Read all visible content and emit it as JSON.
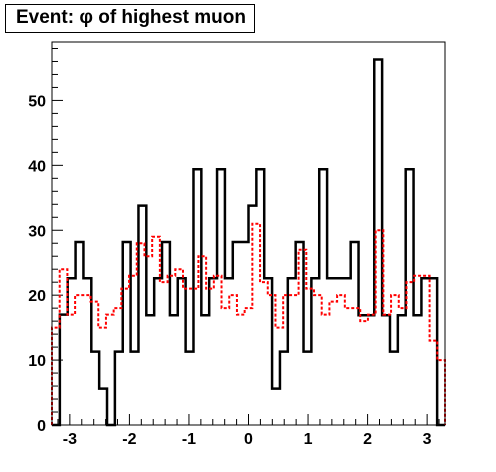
{
  "title": "Event: φ of highest muon",
  "chart_data": {
    "type": "histogram",
    "title": "Event: φ of highest muon",
    "xlabel": "",
    "ylabel": "",
    "xlim": [
      -3.3,
      3.3
    ],
    "ylim": [
      0,
      59
    ],
    "bins": 50,
    "x_ticks": [
      -3,
      -2,
      -1,
      0,
      1,
      2,
      3
    ],
    "y_ticks": [
      0,
      10,
      20,
      30,
      40,
      50
    ],
    "series": [
      {
        "style": "solid",
        "color": "#000000",
        "values": [
          0,
          17,
          22.6,
          28.2,
          22.6,
          11.3,
          5.6,
          0,
          11.3,
          28.2,
          11.3,
          33.8,
          16.9,
          22.6,
          28.2,
          16.9,
          22.6,
          11.3,
          39.4,
          16.9,
          22.6,
          39.4,
          22.6,
          28.2,
          28.2,
          33.8,
          39.4,
          22.6,
          5.6,
          11.3,
          22.6,
          28.2,
          11.3,
          22.6,
          39.4,
          22.6,
          22.6,
          22.6,
          28.2,
          16.9,
          16.9,
          56.3,
          16.9,
          11.3,
          16.9,
          39.4,
          16.9,
          22.6,
          22.6,
          0
        ]
      },
      {
        "style": "dashed",
        "color": "#ff0000",
        "values": [
          15,
          24,
          17,
          20,
          20,
          19,
          15,
          17,
          18,
          21,
          23,
          28,
          26,
          29,
          22,
          23,
          24,
          21,
          21,
          26,
          21,
          23,
          18,
          20,
          17,
          18,
          31,
          22,
          20,
          15,
          20,
          20,
          27,
          21,
          20,
          17,
          19,
          20,
          18,
          18,
          16,
          17,
          30,
          17,
          20,
          18,
          22,
          23,
          23,
          13,
          10
        ]
      }
    ]
  }
}
